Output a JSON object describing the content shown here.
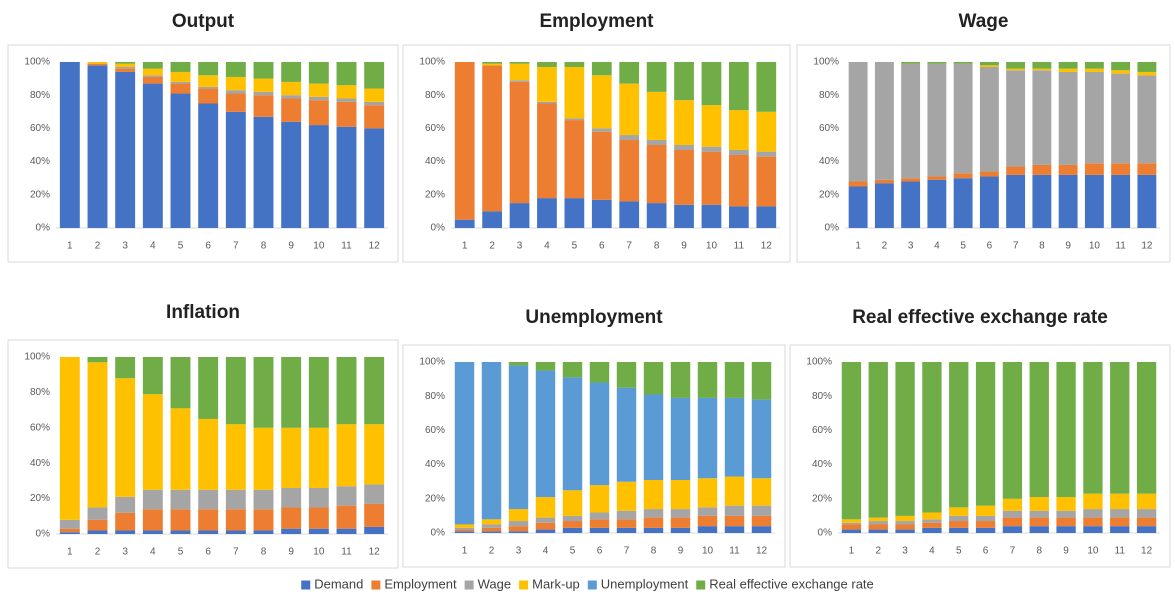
{
  "legend": [
    {
      "name": "Demand",
      "color": "#4472c4"
    },
    {
      "name": "Employment",
      "color": "#ed7d31"
    },
    {
      "name": "Wage",
      "color": "#a5a5a5"
    },
    {
      "name": "Mark-up",
      "color": "#ffc000"
    },
    {
      "name": "Unemployment",
      "color": "#5b9bd5"
    },
    {
      "name": "Real effective exchange rate",
      "color": "#70ad47"
    }
  ],
  "chart_data": [
    {
      "type": "bar",
      "stacked": true,
      "title": "Output",
      "categories": [
        "1",
        "2",
        "3",
        "4",
        "5",
        "6",
        "7",
        "8",
        "9",
        "10",
        "11",
        "12"
      ],
      "ylim": [
        0,
        100
      ],
      "yticks": [
        {
          "value": 0,
          "label": "0%"
        },
        {
          "value": 20,
          "label": "20%"
        },
        {
          "value": 40,
          "label": "40%"
        },
        {
          "value": 60,
          "label": "60%"
        },
        {
          "value": 80,
          "label": "80%"
        },
        {
          "value": 100,
          "label": "100%"
        }
      ],
      "series": [
        {
          "values": [
            100,
            98,
            94,
            87,
            81,
            75,
            70,
            67,
            64,
            62,
            61,
            60
          ]
        },
        {
          "values": [
            0,
            1,
            2,
            4,
            6,
            9,
            11,
            13,
            14,
            15,
            15,
            14
          ]
        },
        {
          "values": [
            0,
            0,
            1,
            1,
            1,
            1,
            2,
            2,
            2,
            2,
            2,
            2
          ]
        },
        {
          "values": [
            0,
            1,
            2,
            4,
            6,
            7,
            8,
            8,
            8,
            8,
            8,
            8
          ]
        },
        {
          "values": [
            0,
            0,
            0,
            0,
            0,
            0,
            0,
            0,
            0,
            0,
            0,
            0
          ]
        },
        {
          "values": [
            0,
            0,
            1,
            4,
            6,
            8,
            9,
            10,
            12,
            13,
            14,
            16
          ]
        }
      ]
    },
    {
      "type": "bar",
      "stacked": true,
      "title": "Employment",
      "categories": [
        "1",
        "2",
        "3",
        "4",
        "5",
        "6",
        "7",
        "8",
        "9",
        "10",
        "11",
        "12"
      ],
      "ylim": [
        0,
        100
      ],
      "yticks": [
        {
          "value": 0,
          "label": "0%"
        },
        {
          "value": 20,
          "label": "20%"
        },
        {
          "value": 40,
          "label": "40%"
        },
        {
          "value": 60,
          "label": "60%"
        },
        {
          "value": 80,
          "label": "80%"
        },
        {
          "value": 100,
          "label": "100%"
        }
      ],
      "series": [
        {
          "values": [
            5,
            10,
            15,
            18,
            18,
            17,
            16,
            15,
            14,
            14,
            13,
            13
          ]
        },
        {
          "values": [
            95,
            88,
            73,
            57,
            47,
            41,
            37,
            35,
            33,
            32,
            31,
            30
          ]
        },
        {
          "values": [
            0,
            0,
            1,
            1,
            1,
            2,
            3,
            3,
            3,
            3,
            3,
            3
          ]
        },
        {
          "values": [
            0,
            1,
            10,
            21,
            31,
            32,
            31,
            29,
            27,
            25,
            24,
            24
          ]
        },
        {
          "values": [
            0,
            0,
            0,
            0,
            0,
            0,
            0,
            0,
            0,
            0,
            0,
            0
          ]
        },
        {
          "values": [
            0,
            1,
            1,
            3,
            3,
            8,
            13,
            18,
            23,
            26,
            29,
            30
          ]
        }
      ]
    },
    {
      "type": "bar",
      "stacked": true,
      "title": "Wage",
      "categories": [
        "1",
        "2",
        "3",
        "4",
        "5",
        "6",
        "7",
        "8",
        "9",
        "10",
        "11",
        "12"
      ],
      "ylim": [
        0,
        100
      ],
      "yticks": [
        {
          "value": 0,
          "label": "0%"
        },
        {
          "value": 20,
          "label": "20%"
        },
        {
          "value": 40,
          "label": "40%"
        },
        {
          "value": 60,
          "label": "60%"
        },
        {
          "value": 80,
          "label": "80%"
        },
        {
          "value": 100,
          "label": "100%"
        }
      ],
      "series": [
        {
          "values": [
            25,
            27,
            28,
            29,
            30,
            31,
            32,
            32,
            32,
            32,
            32,
            32
          ]
        },
        {
          "values": [
            3,
            2,
            2,
            2,
            3,
            3,
            5,
            6,
            6,
            7,
            7,
            7
          ]
        },
        {
          "values": [
            72,
            71,
            69,
            68,
            66,
            63,
            58,
            57,
            56,
            55,
            54,
            53
          ]
        },
        {
          "values": [
            0,
            0,
            0,
            0,
            0,
            1,
            1,
            1,
            2,
            2,
            2,
            2
          ]
        },
        {
          "values": [
            0,
            0,
            0,
            0,
            0,
            0,
            0,
            0,
            0,
            0,
            0,
            0
          ]
        },
        {
          "values": [
            0,
            0,
            1,
            1,
            1,
            2,
            4,
            4,
            4,
            4,
            5,
            6
          ]
        }
      ]
    },
    {
      "type": "bar",
      "stacked": true,
      "title": "Inflation",
      "categories": [
        "1",
        "2",
        "3",
        "4",
        "5",
        "6",
        "7",
        "8",
        "9",
        "10",
        "11",
        "12"
      ],
      "ylim": [
        0,
        100
      ],
      "yticks": [
        {
          "value": 0,
          "label": "0%"
        },
        {
          "value": 20,
          "label": "20%"
        },
        {
          "value": 40,
          "label": "40%"
        },
        {
          "value": 60,
          "label": "60%"
        },
        {
          "value": 80,
          "label": "80%"
        },
        {
          "value": 100,
          "label": "100%"
        }
      ],
      "series": [
        {
          "values": [
            1,
            2,
            2,
            2,
            2,
            2,
            2,
            2,
            3,
            3,
            3,
            4
          ]
        },
        {
          "values": [
            2,
            6,
            10,
            12,
            12,
            12,
            12,
            12,
            12,
            12,
            13,
            13
          ]
        },
        {
          "values": [
            5,
            7,
            9,
            11,
            11,
            11,
            11,
            11,
            11,
            11,
            11,
            11
          ]
        },
        {
          "values": [
            92,
            82,
            67,
            54,
            46,
            40,
            37,
            35,
            34,
            34,
            35,
            34
          ]
        },
        {
          "values": [
            0,
            0,
            0,
            0,
            0,
            0,
            0,
            0,
            0,
            0,
            0,
            0
          ]
        },
        {
          "values": [
            0,
            3,
            12,
            21,
            29,
            35,
            38,
            40,
            40,
            40,
            38,
            38
          ]
        }
      ]
    },
    {
      "type": "bar",
      "stacked": true,
      "title": "Unemployment",
      "categories": [
        "1",
        "2",
        "3",
        "4",
        "5",
        "6",
        "7",
        "8",
        "9",
        "10",
        "11",
        "12"
      ],
      "ylim": [
        0,
        100
      ],
      "yticks": [
        {
          "value": 0,
          "label": "0%"
        },
        {
          "value": 20,
          "label": "20%"
        },
        {
          "value": 40,
          "label": "40%"
        },
        {
          "value": 60,
          "label": "60%"
        },
        {
          "value": 80,
          "label": "80%"
        },
        {
          "value": 100,
          "label": "100%"
        }
      ],
      "series": [
        {
          "values": [
            1,
            1,
            1,
            2,
            3,
            3,
            3,
            3,
            3,
            4,
            4,
            4
          ]
        },
        {
          "values": [
            1,
            2,
            3,
            4,
            4,
            5,
            5,
            6,
            6,
            6,
            6,
            6
          ]
        },
        {
          "values": [
            1,
            2,
            3,
            3,
            3,
            4,
            5,
            5,
            5,
            5,
            6,
            6
          ]
        },
        {
          "values": [
            2,
            3,
            7,
            12,
            15,
            16,
            17,
            17,
            17,
            17,
            17,
            16
          ]
        },
        {
          "values": [
            95,
            92,
            84,
            74,
            66,
            60,
            55,
            50,
            48,
            47,
            46,
            46
          ]
        },
        {
          "values": [
            0,
            0,
            2,
            5,
            9,
            12,
            15,
            19,
            21,
            21,
            21,
            22
          ]
        }
      ]
    },
    {
      "type": "bar",
      "stacked": true,
      "title": "Real effective exchange rate",
      "categories": [
        "1",
        "2",
        "3",
        "4",
        "5",
        "6",
        "7",
        "8",
        "9",
        "10",
        "11",
        "12"
      ],
      "ylim": [
        0,
        100
      ],
      "yticks": [
        {
          "value": 0,
          "label": "0%"
        },
        {
          "value": 20,
          "label": "20%"
        },
        {
          "value": 40,
          "label": "40%"
        },
        {
          "value": 60,
          "label": "60%"
        },
        {
          "value": 80,
          "label": "80%"
        },
        {
          "value": 100,
          "label": "100%"
        }
      ],
      "series": [
        {
          "values": [
            2,
            2,
            2,
            3,
            3,
            3,
            4,
            4,
            4,
            4,
            4,
            4
          ]
        },
        {
          "values": [
            3,
            3,
            3,
            3,
            4,
            4,
            5,
            5,
            5,
            5,
            5,
            5
          ]
        },
        {
          "values": [
            1,
            2,
            2,
            2,
            3,
            3,
            4,
            4,
            4,
            5,
            5,
            5
          ]
        },
        {
          "values": [
            2,
            2,
            3,
            4,
            5,
            6,
            7,
            8,
            8,
            9,
            9,
            9
          ]
        },
        {
          "values": [
            0,
            0,
            0,
            0,
            0,
            0,
            0,
            0,
            0,
            0,
            0,
            0
          ]
        },
        {
          "values": [
            92,
            91,
            90,
            88,
            85,
            84,
            80,
            79,
            79,
            77,
            77,
            77
          ]
        }
      ]
    }
  ]
}
